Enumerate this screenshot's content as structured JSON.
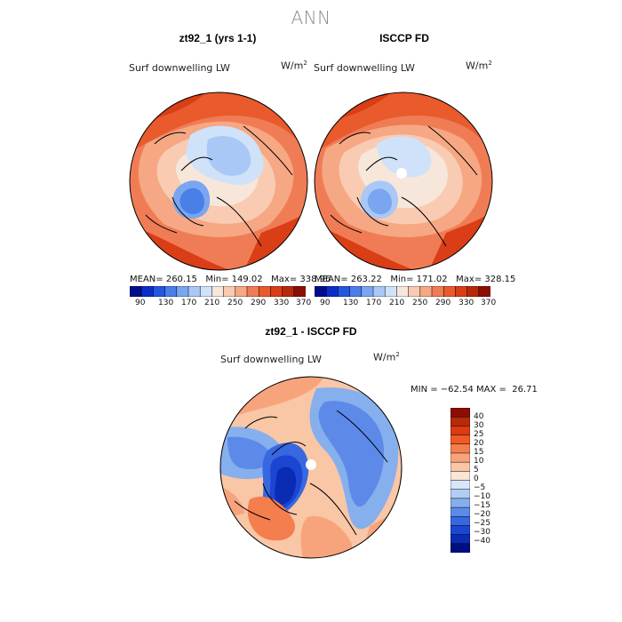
{
  "page": {
    "title": "ANN"
  },
  "panels": [
    {
      "title": "zt92_1 (yrs 1-1)",
      "variable": "Surf downwelling LW",
      "units_base": "W/m",
      "units_exp": "2",
      "stats": {
        "mean": "260.15",
        "min": "149.02",
        "max": "338.96"
      },
      "stats_text": "MEAN= 260.15   Min= 149.02   Max= 338.96"
    },
    {
      "title": "ISCCP FD",
      "variable": "Surf downwelling LW",
      "units_base": "W/m",
      "units_exp": "2",
      "stats": {
        "mean": "263.22",
        "min": "171.02",
        "max": "328.15"
      },
      "stats_text": "MEAN= 263.22   Min= 171.02   Max= 328.15"
    },
    {
      "title": "zt92_1 - ISCCP FD",
      "variable": "Surf downwelling LW",
      "units_base": "W/m",
      "units_exp": "2",
      "stats": {
        "min": "-62.54",
        "max": "26.71"
      },
      "stats_text": "MIN = −62.54 MAX =  26.71"
    }
  ],
  "colorbar_abs": {
    "labels": [
      "90",
      "130",
      "170",
      "210",
      "250",
      "290",
      "330",
      "370"
    ],
    "colors": [
      "#000e8a",
      "#0b2ec9",
      "#2357df",
      "#4a7fe8",
      "#7aa5f0",
      "#a9c8f5",
      "#cfe2fa",
      "#f7e6da",
      "#f9cbb2",
      "#f6a783",
      "#f07c55",
      "#e95a2d",
      "#d93e16",
      "#b8290b",
      "#8a0e05"
    ]
  },
  "colorbar_diff": {
    "labels": [
      "40",
      "30",
      "25",
      "20",
      "15",
      "10",
      "5",
      "0",
      "−5",
      "−10",
      "−15",
      "−20",
      "−25",
      "−30",
      "−40"
    ],
    "colors": [
      "#8b0e05",
      "#b9290a",
      "#dc3a12",
      "#ef5a24",
      "#f47e4e",
      "#f7a47c",
      "#f9c6a6",
      "#fbe5d6",
      "#d8e6fb",
      "#b0cdf5",
      "#86afee",
      "#5d8ae8",
      "#3868e0",
      "#1c45d2",
      "#0a2bb4",
      "#000e80"
    ]
  }
}
